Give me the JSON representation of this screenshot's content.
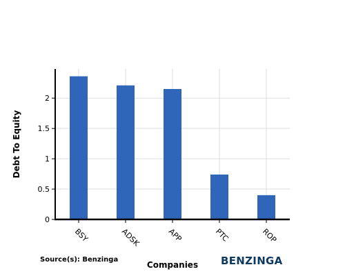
{
  "chart_data": {
    "type": "bar",
    "categories": [
      "BSY",
      "ADSK",
      "APP",
      "PTC",
      "ROP"
    ],
    "values": [
      2.36,
      2.21,
      2.15,
      0.74,
      0.4
    ],
    "xlabel": "Companies",
    "ylabel": "Debt To Equity",
    "ylim": [
      0,
      2.48
    ],
    "yticks": [
      0,
      0.5,
      1,
      1.5,
      2
    ],
    "ytick_labels": [
      "0",
      "0.5",
      "1",
      "1.5",
      "2"
    ],
    "grid": true,
    "bar_color": "#3066BA",
    "grid_color": "#DDDDDD",
    "axis_color": "#000000"
  },
  "footer": {
    "source": "Source(s): Benzinga",
    "brand": "BENZINGA",
    "brand_color": "#0F3A5F"
  }
}
